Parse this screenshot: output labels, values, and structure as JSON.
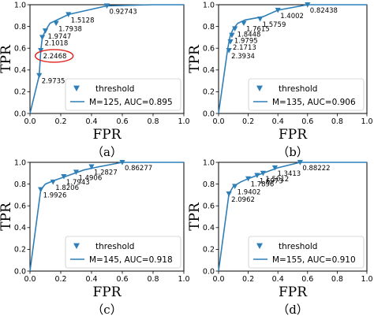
{
  "figure": {
    "line_color": "#2e7fb8",
    "highlight_color": "#e0201b"
  },
  "chart_data": [
    {
      "type": "line",
      "caption": "（a）",
      "xlabel": "FPR",
      "ylabel": "TPR",
      "xlim": [
        0,
        1
      ],
      "ylim": [
        0,
        1
      ],
      "xticks": [
        "0.0",
        "0.2",
        "0.4",
        "0.6",
        "0.8",
        "1.0"
      ],
      "yticks": [
        "0.0",
        "0.2",
        "0.4",
        "0.6",
        "0.8",
        "1.0"
      ],
      "grid": false,
      "legend_position": "lower-right",
      "legend": {
        "marker_label": "threshold",
        "line_label": "M=125, AUC=0.895"
      },
      "roc": {
        "x": [
          0,
          0.06,
          0.07,
          0.08,
          0.1,
          0.13,
          0.25,
          0.5,
          0.8,
          1.0
        ],
        "y": [
          0,
          0.35,
          0.58,
          0.7,
          0.76,
          0.83,
          0.91,
          0.99,
          1.0,
          1.0
        ]
      },
      "thresholds": [
        {
          "x": 0.06,
          "y": 0.35,
          "label": "2.9735"
        },
        {
          "x": 0.07,
          "y": 0.58,
          "label": "2.2468",
          "highlighted": true
        },
        {
          "x": 0.08,
          "y": 0.7,
          "label": "2.1018"
        },
        {
          "x": 0.1,
          "y": 0.76,
          "label": "1.9747"
        },
        {
          "x": 0.17,
          "y": 0.83,
          "label": "1.7938"
        },
        {
          "x": 0.25,
          "y": 0.91,
          "label": "1.5128"
        },
        {
          "x": 0.5,
          "y": 0.99,
          "label": "0.92743"
        }
      ]
    },
    {
      "type": "line",
      "caption": "（b）",
      "xlabel": "FPR",
      "ylabel": "TPR",
      "xlim": [
        0,
        1
      ],
      "ylim": [
        0,
        1
      ],
      "xticks": [
        "0.0",
        "0.2",
        "0.4",
        "0.6",
        "0.8",
        "1.0"
      ],
      "yticks": [
        "0.0",
        "0.2",
        "0.4",
        "0.6",
        "0.8",
        "1.0"
      ],
      "grid": false,
      "legend_position": "lower-right",
      "legend": {
        "marker_label": "threshold",
        "line_label": "M=135, AUC=0.906"
      },
      "roc": {
        "x": [
          0,
          0.06,
          0.07,
          0.08,
          0.1,
          0.13,
          0.18,
          0.3,
          0.4,
          0.6,
          0.8,
          1.0
        ],
        "y": [
          0,
          0.58,
          0.66,
          0.72,
          0.78,
          0.83,
          0.86,
          0.89,
          0.95,
          1.0,
          1.0,
          1.0
        ]
      },
      "thresholds": [
        {
          "x": 0.07,
          "y": 0.58,
          "label": "2.3934"
        },
        {
          "x": 0.08,
          "y": 0.66,
          "label": "2.1713"
        },
        {
          "x": 0.09,
          "y": 0.72,
          "label": "1.9795"
        },
        {
          "x": 0.11,
          "y": 0.78,
          "label": "1.8448"
        },
        {
          "x": 0.17,
          "y": 0.83,
          "label": "1.7615"
        },
        {
          "x": 0.28,
          "y": 0.87,
          "label": "1.5759"
        },
        {
          "x": 0.4,
          "y": 0.95,
          "label": "1.4002"
        },
        {
          "x": 0.6,
          "y": 1.0,
          "label": "0.82438"
        }
      ]
    },
    {
      "type": "line",
      "caption": "（c）",
      "xlabel": "FPR",
      "ylabel": "TPR",
      "xlim": [
        0,
        1
      ],
      "ylim": [
        0,
        1
      ],
      "xticks": [
        "0.0",
        "0.2",
        "0.4",
        "0.6",
        "0.8",
        "1.0"
      ],
      "yticks": [
        "0.0",
        "0.2",
        "0.4",
        "0.6",
        "0.8",
        "1.0"
      ],
      "grid": false,
      "legend_position": "lower-right",
      "legend": {
        "marker_label": "threshold",
        "line_label": "M=145, AUC=0.918"
      },
      "roc": {
        "x": [
          0,
          0.07,
          0.1,
          0.15,
          0.25,
          0.35,
          0.45,
          0.6,
          0.8,
          1.0
        ],
        "y": [
          0,
          0.75,
          0.8,
          0.83,
          0.88,
          0.93,
          0.96,
          1.0,
          1.0,
          1.0
        ]
      },
      "thresholds": [
        {
          "x": 0.07,
          "y": 0.75,
          "label": "1.9926"
        },
        {
          "x": 0.15,
          "y": 0.82,
          "label": "1.8206"
        },
        {
          "x": 0.22,
          "y": 0.87,
          "label": "1.7943"
        },
        {
          "x": 0.3,
          "y": 0.91,
          "label": "1.4906"
        },
        {
          "x": 0.4,
          "y": 0.96,
          "label": "1.2827"
        },
        {
          "x": 0.6,
          "y": 1.0,
          "label": "0.86277"
        }
      ]
    },
    {
      "type": "line",
      "caption": "（d）",
      "xlabel": "FPR",
      "ylabel": "TPR",
      "xlim": [
        0,
        1
      ],
      "ylim": [
        0,
        1
      ],
      "xticks": [
        "0.0",
        "0.2",
        "0.4",
        "0.6",
        "0.8",
        "1.0"
      ],
      "yticks": [
        "0.0",
        "0.2",
        "0.4",
        "0.6",
        "0.8",
        "1.0"
      ],
      "grid": false,
      "legend_position": "lower-right",
      "legend": {
        "marker_label": "threshold",
        "line_label": "M=155, AUC=0.910"
      },
      "roc": {
        "x": [
          0,
          0.07,
          0.1,
          0.15,
          0.2,
          0.3,
          0.4,
          0.55,
          0.8,
          1.0
        ],
        "y": [
          0,
          0.71,
          0.78,
          0.82,
          0.85,
          0.9,
          0.95,
          1.0,
          1.0,
          1.0
        ]
      },
      "thresholds": [
        {
          "x": 0.07,
          "y": 0.71,
          "label": "2.0962"
        },
        {
          "x": 0.11,
          "y": 0.78,
          "label": "1.9402"
        },
        {
          "x": 0.2,
          "y": 0.85,
          "label": "1.7896"
        },
        {
          "x": 0.26,
          "y": 0.88,
          "label": "1.6973"
        },
        {
          "x": 0.3,
          "y": 0.9,
          "label": "1.5012"
        },
        {
          "x": 0.38,
          "y": 0.95,
          "label": "1.3413"
        },
        {
          "x": 0.55,
          "y": 1.0,
          "label": "0.88222"
        }
      ]
    }
  ]
}
